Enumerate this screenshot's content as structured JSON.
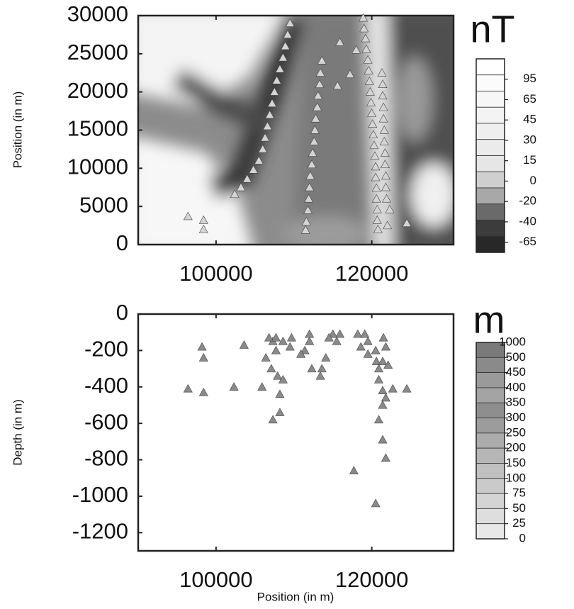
{
  "chart_data": [
    {
      "type": "scatter",
      "ylabel": "Position (in m)",
      "x": [
        109500,
        109200,
        108900,
        108600,
        108200,
        107800,
        107500,
        107200,
        106900,
        106600,
        106300,
        106000,
        105500,
        104800,
        104000,
        103200,
        102400,
        113600,
        113400,
        113300,
        113100,
        113000,
        112800,
        112700,
        112600,
        112400,
        112300,
        112100,
        112000,
        111900,
        111800,
        111600,
        111500,
        118900,
        119000,
        119200,
        119300,
        119500,
        119600,
        119700,
        119800,
        119900,
        120000,
        120100,
        120200,
        120300,
        120400,
        120500,
        120500,
        120600,
        120600,
        120700,
        120700,
        120800,
        121300,
        121400,
        121400,
        121500,
        121500,
        121600,
        121600,
        121700,
        121700,
        121800,
        121800,
        121900,
        118000,
        117200,
        115600,
        115900,
        96400,
        98400,
        98400,
        122300,
        124500,
        122000
      ],
      "values": [
        29000,
        27500,
        26000,
        24500,
        23000,
        21500,
        20000,
        18500,
        17000,
        15500,
        14000,
        12500,
        11000,
        9800,
        8600,
        7500,
        6600,
        24100,
        22500,
        21000,
        19500,
        18000,
        16500,
        15000,
        13500,
        12000,
        10500,
        9000,
        7500,
        6000,
        4500,
        3000,
        1900,
        29700,
        28300,
        27000,
        25600,
        24200,
        22800,
        21400,
        20000,
        18600,
        17200,
        15800,
        14400,
        13000,
        11600,
        10200,
        8800,
        7400,
        6000,
        4600,
        3200,
        2000,
        22500,
        21000,
        19500,
        18000,
        16500,
        15000,
        13500,
        12000,
        10500,
        9000,
        7500,
        6000,
        25500,
        22300,
        20800,
        26500,
        3700,
        3200,
        2000,
        4600,
        2800,
        2500
      ],
      "marker_color": "#d4d4d4",
      "xlim": [
        90000,
        130500
      ],
      "ylim": [
        0,
        30000
      ],
      "xticks": [
        100000,
        120000
      ],
      "yticks": [
        0,
        5000,
        10000,
        15000,
        20000,
        25000,
        30000
      ],
      "colorbar": {
        "title": "nT",
        "ticks": [
          95,
          65,
          45,
          30,
          15,
          0,
          -20,
          -40,
          -65
        ],
        "colors": [
          "#ffffff",
          "#fbfbfb",
          "#f7f7f7",
          "#f3f3f3",
          "#efefef",
          "#ebebeb",
          "#e6e6e6",
          "#cfcfcf",
          "#a8a8a8",
          "#6a6a6a",
          "#3c3c3c",
          "#282828"
        ]
      }
    },
    {
      "type": "scatter",
      "xlabel": "Position (in m)",
      "ylabel": "Depth (in m)",
      "x": [
        96400,
        98400,
        98200,
        98400,
        102300,
        103600,
        106400,
        107100,
        105900,
        107300,
        107700,
        107900,
        108200,
        108600,
        106800,
        107700,
        108600,
        109500,
        109700,
        112000,
        112300,
        111400,
        113600,
        113400,
        114100,
        115500,
        115000,
        115900,
        118200,
        119100,
        119500,
        119500,
        120500,
        120600,
        120900,
        121400,
        121500,
        121800,
        122100,
        120900,
        121400,
        121800,
        120900,
        121400,
        121400,
        121800,
        117700,
        120500,
        122700,
        124500,
        118600,
        114500,
        112000,
        110900,
        108200,
        107300
      ],
      "values": [
        -410,
        -430,
        -180,
        -240,
        -400,
        -170,
        -240,
        -300,
        -400,
        -150,
        -200,
        -340,
        -440,
        -360,
        -130,
        -130,
        -150,
        -180,
        -130,
        -110,
        -300,
        -200,
        -300,
        -340,
        -240,
        -150,
        -110,
        -110,
        -110,
        -110,
        -150,
        -220,
        -200,
        -260,
        -300,
        -260,
        -130,
        -180,
        -280,
        -360,
        -420,
        -460,
        -580,
        -500,
        -690,
        -790,
        -860,
        -1040,
        -410,
        -410,
        -180,
        -130,
        -150,
        -220,
        -540,
        -580
      ],
      "marker_color": "#8a8a8a",
      "xlim": [
        90000,
        130500
      ],
      "ylim": [
        -1300,
        0
      ],
      "xticks": [
        100000,
        120000
      ],
      "yticks": [
        0,
        -200,
        -400,
        -600,
        -800,
        -1000,
        -1200
      ],
      "colorbar": {
        "title": "m",
        "ticks": [
          1000,
          500,
          450,
          400,
          350,
          300,
          250,
          200,
          150,
          100,
          75,
          50,
          25,
          0
        ],
        "colors": [
          "#7a7a7a",
          "#8a8a8a",
          "#9a9a9a",
          "#a4a4a4",
          "#8e8e8e",
          "#9c9c9c",
          "#acacac",
          "#b6b6b6",
          "#c0c0c0",
          "#cacaca",
          "#d4d4d4",
          "#dedede",
          "#e8e8e8"
        ]
      }
    }
  ]
}
